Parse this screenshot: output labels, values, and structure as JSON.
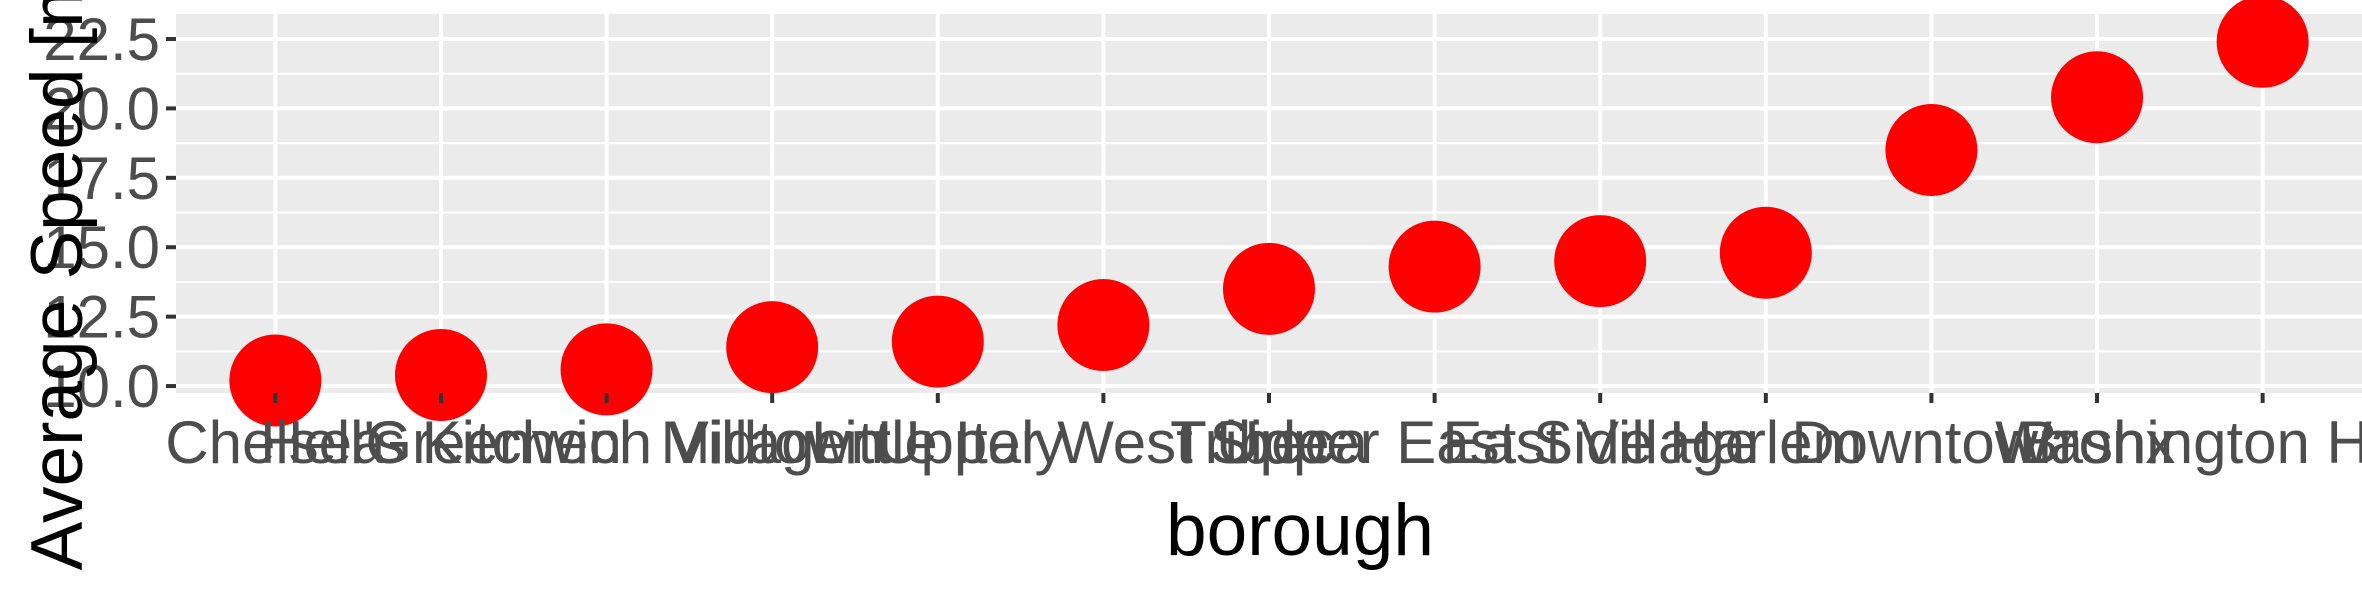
{
  "chart_data": {
    "type": "scatter",
    "xlabel": "borough",
    "ylabel": "Average Speed [mph]",
    "categories": [
      "Chelsea",
      "Hell's Kitchen",
      "Greenwich Village",
      "Midtown",
      "Little Italy",
      "Upper West Side",
      "Tribeca",
      "Upper East Side",
      "East Village",
      "Harlem",
      "Downtown",
      "Bronx",
      "Washington Heights"
    ],
    "values": [
      10.2,
      10.4,
      10.6,
      11.4,
      11.6,
      12.2,
      13.5,
      14.3,
      14.5,
      14.8,
      18.5,
      20.4,
      22.4
    ],
    "yticks": [
      "10.0",
      "12.5",
      "15.0",
      "17.5",
      "20.0",
      "22.5"
    ],
    "ylim": [
      9.75,
      23.4
    ],
    "grid": true,
    "colors": {
      "point": "#ff0000",
      "panel": "#ebebeb",
      "grid": "#ffffff"
    }
  }
}
